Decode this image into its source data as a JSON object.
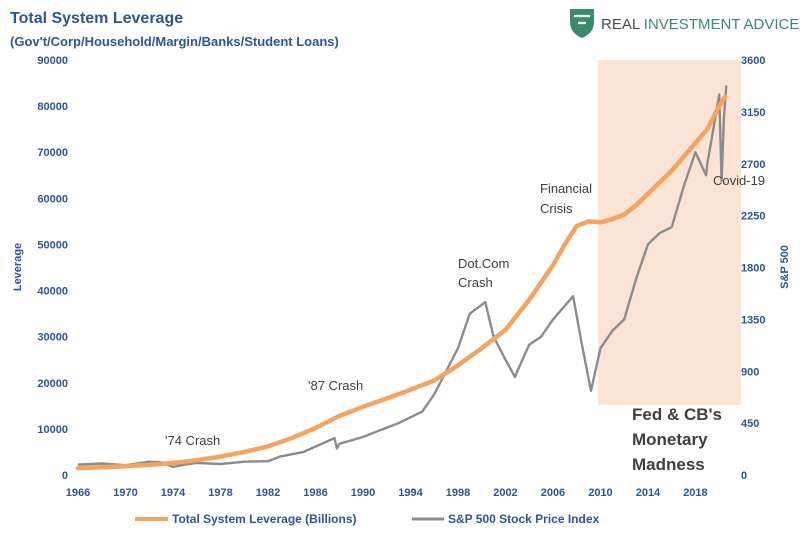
{
  "brand": {
    "name_part1": "REAL ",
    "name_part2": "INVESTMENT ADVICE",
    "logo_icon": "bull-shield-icon",
    "colors": {
      "dark": "#4a4a4a",
      "green": "#3c8a6e"
    }
  },
  "chart_data": {
    "type": "line",
    "title": "Total System Leverage",
    "subtitle": "(Gov't/Corp/Household/Margin/Banks/Student Loans)",
    "ylabel": "Leverage",
    "y2label": "S&P 500",
    "ylim": [
      0,
      90000
    ],
    "y2lim": [
      0,
      3600
    ],
    "xlim": [
      1966,
      2021.5
    ],
    "x_ticks": [
      "1966",
      "1970",
      "1974",
      "1978",
      "1982",
      "1986",
      "1990",
      "1994",
      "1998",
      "2002",
      "2006",
      "2010",
      "2014",
      "2018"
    ],
    "y_ticks": [
      "0",
      "10000",
      "20000",
      "30000",
      "40000",
      "50000",
      "60000",
      "70000",
      "80000",
      "90000"
    ],
    "y2_ticks": [
      "0",
      "450",
      "900",
      "1350",
      "1800",
      "2250",
      "2700",
      "3150",
      "3600"
    ],
    "grid": false,
    "legend_position": "bottom",
    "shaded_region": {
      "x_start": 2009.8,
      "x_end": 2021.5,
      "color": "#FBE4D5"
    },
    "series": [
      {
        "name": "Total System Leverage (Billions)",
        "axis": "left",
        "color": "#F4A460",
        "x": [
          1966,
          1968,
          1970,
          1972,
          1974,
          1976,
          1978,
          1980,
          1982,
          1984,
          1986,
          1988,
          1990,
          1992,
          1994,
          1996,
          1998,
          2000,
          2002,
          2004,
          2006,
          2007,
          2008,
          2009,
          2010,
          2011,
          2012,
          2013,
          2014,
          2015,
          2016,
          2017,
          2018,
          2019,
          2020,
          2020.5
        ],
        "values": [
          1500,
          1700,
          1900,
          2200,
          2600,
          3200,
          4000,
          5000,
          6200,
          8000,
          10200,
          12800,
          14800,
          16600,
          18500,
          20500,
          23800,
          27500,
          31500,
          38000,
          45500,
          50000,
          54000,
          55000,
          54800,
          55500,
          56500,
          58500,
          61000,
          63500,
          66000,
          69000,
          72000,
          75000,
          80000,
          82000
        ]
      },
      {
        "name": "S&P 500 Stock Price Index",
        "axis": "right",
        "color": "#8C8C8C",
        "x": [
          1966,
          1968,
          1970,
          1972,
          1973,
          1974,
          1975,
          1976,
          1978,
          1980,
          1982,
          1983,
          1985,
          1987.6,
          1987.8,
          1988,
          1990,
          1991,
          1993,
          1995,
          1996,
          1997,
          1998,
          1999,
          2000.3,
          2001,
          2002,
          2002.8,
          2003,
          2004,
          2005,
          2006,
          2007.7,
          2008.5,
          2009.2,
          2010,
          2011,
          2012,
          2013,
          2014,
          2015,
          2016,
          2017,
          2018,
          2018.9,
          2019,
          2019.5,
          2020,
          2020.2,
          2020.4,
          2020.6
        ],
        "values": [
          90,
          100,
          85,
          115,
          110,
          70,
          90,
          105,
          95,
          115,
          120,
          160,
          200,
          320,
          230,
          270,
          330,
          370,
          450,
          550,
          700,
          900,
          1100,
          1400,
          1500,
          1200,
          1000,
          850,
          900,
          1130,
          1200,
          1350,
          1550,
          1100,
          730,
          1100,
          1250,
          1350,
          1700,
          2000,
          2100,
          2150,
          2500,
          2800,
          2600,
          2700,
          3000,
          3300,
          2550,
          3100,
          3380
        ]
      }
    ],
    "annotations": [
      {
        "text": "'74 Crash"
      },
      {
        "text": "'87 Crash"
      },
      {
        "text": "Dot.Com"
      },
      {
        "text": "Crash"
      },
      {
        "text": "Financial"
      },
      {
        "text": "Crisis"
      },
      {
        "text": "Covid-19"
      }
    ],
    "callout": {
      "lines": [
        "Fed & CB's",
        "Monetary",
        "Madness"
      ]
    }
  }
}
